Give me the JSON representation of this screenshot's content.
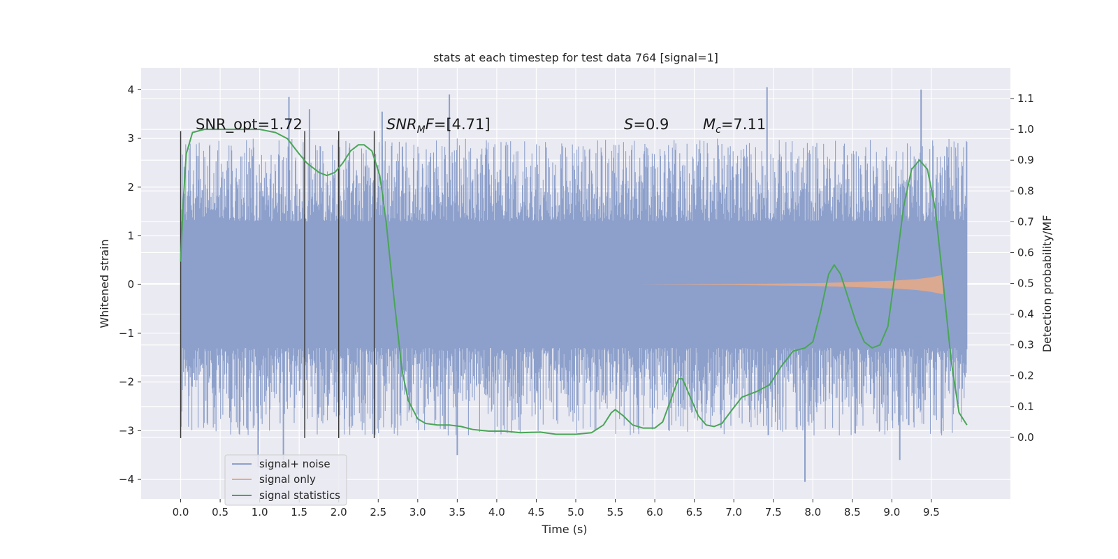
{
  "chart_data": {
    "type": "line",
    "title": "stats at each timestep for test data 764 [signal=1]",
    "xlabel": "Time (s)",
    "ylabel": "Whitened strain",
    "y2label": "Detection probability/MF",
    "xlim": [
      -0.5,
      10.5
    ],
    "ylim": [
      -4.4,
      4.45
    ],
    "y2lim": [
      -0.2,
      1.2
    ],
    "xticks": [
      0.0,
      0.5,
      1.0,
      1.5,
      2.0,
      2.5,
      3.0,
      3.5,
      4.0,
      4.5,
      5.0,
      5.5,
      6.0,
      6.5,
      7.0,
      7.5,
      8.0,
      8.5,
      9.0,
      9.5
    ],
    "xticklabels": [
      "0.0",
      "0.5",
      "1.0",
      "1.5",
      "2.0",
      "2.5",
      "3.0",
      "3.5",
      "4.0",
      "4.5",
      "5.0",
      "5.5",
      "6.0",
      "6.5",
      "7.0",
      "7.5",
      "8.0",
      "8.5",
      "9.0",
      "9.5"
    ],
    "yticks": [
      -4,
      -3,
      -2,
      -1,
      0,
      1,
      2,
      3,
      4
    ],
    "yticklabels": [
      "−4",
      "−3",
      "−2",
      "−1",
      "0",
      "1",
      "2",
      "3",
      "4"
    ],
    "y2ticks": [
      0.0,
      0.1,
      0.2,
      0.3,
      0.4,
      0.5,
      0.6,
      0.7,
      0.8,
      0.9,
      1.0,
      1.1
    ],
    "y2ticklabels": [
      "0.0",
      "0.1",
      "0.2",
      "0.3",
      "0.4",
      "0.5",
      "0.6",
      "0.7",
      "0.8",
      "0.9",
      "1.0",
      "1.1"
    ],
    "grid": true,
    "legend_position": "lower-left",
    "colors": {
      "signal_noise": "#8da0cb",
      "signal_only": "#e9a986",
      "statistics": "#4aa557",
      "markers": "#3a3a3a",
      "background": "#eaeaf2",
      "grid": "#ffffff"
    },
    "series": [
      {
        "name": "signal+ noise",
        "x_range": [
          0.0,
          9.95
        ],
        "envelope": {
          "core_abs": 1.3,
          "typical_abs": 2.6,
          "peaks": [
            {
              "x": 1.37,
              "y": 3.85
            },
            {
              "x": 1.63,
              "y": 3.6
            },
            {
              "x": 2.55,
              "y": 3.55
            },
            {
              "x": 3.4,
              "y": 3.9
            },
            {
              "x": 7.42,
              "y": 4.05
            },
            {
              "x": 9.37,
              "y": 4.0
            },
            {
              "x": 0.98,
              "y": -3.75
            },
            {
              "x": 1.3,
              "y": -3.6
            },
            {
              "x": 3.5,
              "y": -3.5
            },
            {
              "x": 7.9,
              "y": -4.05
            },
            {
              "x": 9.1,
              "y": -3.6
            }
          ]
        }
      },
      {
        "name": "signal only",
        "x_range": [
          5.8,
          9.65
        ],
        "amplitude_envelope": [
          {
            "x": 5.8,
            "y": 0.0
          },
          {
            "x": 7.0,
            "y": 0.01
          },
          {
            "x": 8.0,
            "y": 0.03
          },
          {
            "x": 8.5,
            "y": 0.05
          },
          {
            "x": 9.0,
            "y": 0.08
          },
          {
            "x": 9.3,
            "y": 0.11
          },
          {
            "x": 9.5,
            "y": 0.15
          },
          {
            "x": 9.65,
            "y": 0.2
          }
        ]
      },
      {
        "name": "signal statistics",
        "axis": "right",
        "points": [
          {
            "x": 0.0,
            "y": 0.57
          },
          {
            "x": 0.03,
            "y": 0.75
          },
          {
            "x": 0.07,
            "y": 0.92
          },
          {
            "x": 0.15,
            "y": 0.99
          },
          {
            "x": 0.3,
            "y": 1.0
          },
          {
            "x": 0.6,
            "y": 1.0
          },
          {
            "x": 1.0,
            "y": 1.0
          },
          {
            "x": 1.2,
            "y": 0.99
          },
          {
            "x": 1.35,
            "y": 0.97
          },
          {
            "x": 1.5,
            "y": 0.92
          },
          {
            "x": 1.6,
            "y": 0.89
          },
          {
            "x": 1.75,
            "y": 0.86
          },
          {
            "x": 1.85,
            "y": 0.85
          },
          {
            "x": 1.95,
            "y": 0.86
          },
          {
            "x": 2.05,
            "y": 0.89
          },
          {
            "x": 2.15,
            "y": 0.93
          },
          {
            "x": 2.25,
            "y": 0.95
          },
          {
            "x": 2.32,
            "y": 0.95
          },
          {
            "x": 2.42,
            "y": 0.93
          },
          {
            "x": 2.52,
            "y": 0.85
          },
          {
            "x": 2.6,
            "y": 0.7
          },
          {
            "x": 2.7,
            "y": 0.45
          },
          {
            "x": 2.8,
            "y": 0.22
          },
          {
            "x": 2.88,
            "y": 0.12
          },
          {
            "x": 3.0,
            "y": 0.06
          },
          {
            "x": 3.1,
            "y": 0.045
          },
          {
            "x": 3.25,
            "y": 0.04
          },
          {
            "x": 3.4,
            "y": 0.04
          },
          {
            "x": 3.55,
            "y": 0.035
          },
          {
            "x": 3.7,
            "y": 0.025
          },
          {
            "x": 3.9,
            "y": 0.02
          },
          {
            "x": 4.1,
            "y": 0.02
          },
          {
            "x": 4.3,
            "y": 0.015
          },
          {
            "x": 4.55,
            "y": 0.017
          },
          {
            "x": 4.75,
            "y": 0.01
          },
          {
            "x": 5.0,
            "y": 0.01
          },
          {
            "x": 5.2,
            "y": 0.015
          },
          {
            "x": 5.35,
            "y": 0.04
          },
          {
            "x": 5.45,
            "y": 0.08
          },
          {
            "x": 5.5,
            "y": 0.09
          },
          {
            "x": 5.6,
            "y": 0.07
          },
          {
            "x": 5.72,
            "y": 0.04
          },
          {
            "x": 5.85,
            "y": 0.03
          },
          {
            "x": 6.0,
            "y": 0.03
          },
          {
            "x": 6.1,
            "y": 0.05
          },
          {
            "x": 6.2,
            "y": 0.12
          },
          {
            "x": 6.3,
            "y": 0.19
          },
          {
            "x": 6.35,
            "y": 0.19
          },
          {
            "x": 6.45,
            "y": 0.13
          },
          {
            "x": 6.55,
            "y": 0.07
          },
          {
            "x": 6.65,
            "y": 0.04
          },
          {
            "x": 6.75,
            "y": 0.035
          },
          {
            "x": 6.85,
            "y": 0.045
          },
          {
            "x": 6.95,
            "y": 0.08
          },
          {
            "x": 7.1,
            "y": 0.13
          },
          {
            "x": 7.3,
            "y": 0.15
          },
          {
            "x": 7.45,
            "y": 0.17
          },
          {
            "x": 7.6,
            "y": 0.23
          },
          {
            "x": 7.75,
            "y": 0.28
          },
          {
            "x": 7.9,
            "y": 0.29
          },
          {
            "x": 8.0,
            "y": 0.31
          },
          {
            "x": 8.1,
            "y": 0.41
          },
          {
            "x": 8.2,
            "y": 0.53
          },
          {
            "x": 8.27,
            "y": 0.56
          },
          {
            "x": 8.35,
            "y": 0.53
          },
          {
            "x": 8.45,
            "y": 0.45
          },
          {
            "x": 8.55,
            "y": 0.37
          },
          {
            "x": 8.65,
            "y": 0.31
          },
          {
            "x": 8.75,
            "y": 0.29
          },
          {
            "x": 8.85,
            "y": 0.3
          },
          {
            "x": 8.95,
            "y": 0.36
          },
          {
            "x": 9.05,
            "y": 0.55
          },
          {
            "x": 9.15,
            "y": 0.75
          },
          {
            "x": 9.25,
            "y": 0.87
          },
          {
            "x": 9.35,
            "y": 0.9
          },
          {
            "x": 9.45,
            "y": 0.87
          },
          {
            "x": 9.55,
            "y": 0.74
          },
          {
            "x": 9.65,
            "y": 0.5
          },
          {
            "x": 9.75,
            "y": 0.25
          },
          {
            "x": 9.85,
            "y": 0.08
          },
          {
            "x": 9.95,
            "y": 0.04
          }
        ]
      }
    ],
    "markers_x": [
      0.0,
      1.57,
      2.0,
      2.45
    ],
    "markers_y_range": [
      -3.15,
      3.15
    ],
    "annotations": [
      {
        "x": 0.2,
        "y": 3.2,
        "text": "SNR_opt=1.72"
      },
      {
        "x": 2.6,
        "y": 3.2,
        "text": "SNR_MF=[4.71]"
      },
      {
        "x": 5.6,
        "y": 3.2,
        "text": "S=0.9"
      },
      {
        "x": 6.6,
        "y": 3.2,
        "text": "M_c=7.11"
      }
    ],
    "legend": [
      "signal+ noise",
      "signal only",
      "signal statistics"
    ]
  }
}
